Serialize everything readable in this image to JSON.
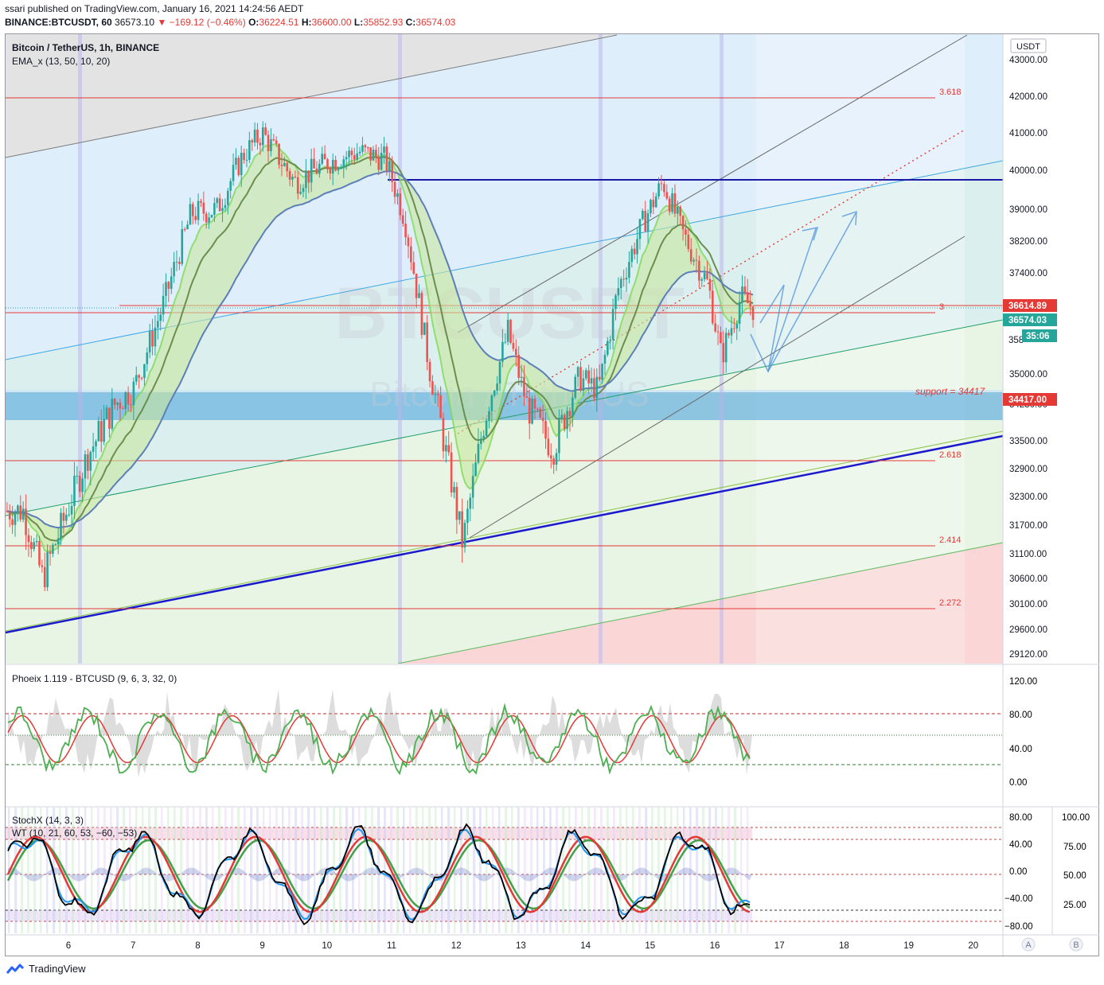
{
  "header": {
    "published": "ssari published on TradingView.com, January 16, 2021 14:24:56 AEDT",
    "symbol_line": {
      "symbol": "BINANCE:BTCUSDT, 60",
      "last": "36573.10",
      "change": "▼ −169.12 (−0.46%)",
      "o_label": "O:",
      "o": "36224.51",
      "h_label": "H:",
      "h": "36600.00",
      "l_label": "L:",
      "l": "35852.93",
      "c_label": "C:",
      "c": "36574.03"
    }
  },
  "main_pane": {
    "title": "Bitcoin / TetherUS, 1h, BINANCE",
    "indicator": "EMA_x (13, 50, 10, 20)",
    "currency": "USDT",
    "watermark": "BTCUSDT",
    "watermark_sub": "Bitcoin / TetherUS",
    "support_label": "support = 34417",
    "fib_labels": [
      "3.618",
      "3",
      "2.618",
      "2.414",
      "2.272"
    ]
  },
  "price_axis": [
    "43000.00",
    "42000.00",
    "41000.00",
    "40000.00",
    "39000.00",
    "38200.00",
    "37400.00",
    "35000.00",
    "34230.00",
    "33500.00",
    "32900.00",
    "32300.00",
    "31700.00",
    "31100.00",
    "30600.00",
    "30100.00",
    "29600.00",
    "29120.00"
  ],
  "price_tags": [
    {
      "label": "36614.89",
      "color": "#e53935"
    },
    {
      "label": "36574.03",
      "color": "#26a69a"
    },
    {
      "label": "35:06",
      "color": "#26a69a"
    },
    {
      "label": "34417.00",
      "color": "#e53935"
    }
  ],
  "partial_axis_label": "358",
  "phoenix_pane": {
    "title": "Phoeix 1.119 - BTCUSD (9, 6, 3, 32, 0)",
    "axis": [
      "120.00",
      "80.00",
      "40.00",
      "0.00"
    ]
  },
  "stoch_pane": {
    "title1": "StochX (14, 3, 3)",
    "title2": "WT (10, 21, 60, 53, −60, −53)",
    "axis_left": [
      "80.00",
      "40.00",
      "0.00",
      "−40.00",
      "−80.00"
    ],
    "axis_right": [
      "100.00",
      "75.00",
      "50.00",
      "25.00"
    ]
  },
  "time_axis": [
    "6",
    "7",
    "8",
    "9",
    "10",
    "11",
    "12",
    "13",
    "14",
    "15",
    "16",
    "17",
    "18",
    "19",
    "20"
  ],
  "scale_buttons": [
    "A",
    "B"
  ],
  "footer": {
    "brand": "TradingView"
  },
  "colors": {
    "up": "#26a69a",
    "down": "#ef5350",
    "fib": "#e53935",
    "trend_blue": "#1a237e",
    "resistance": "#1a1aa6"
  },
  "chart_data": [
    {
      "type": "candlestick",
      "title": "Bitcoin / TetherUS, 1h, BINANCE",
      "x": [
        "6",
        "7",
        "8",
        "9",
        "10",
        "11",
        "12",
        "13",
        "14",
        "15",
        "16",
        "17",
        "18",
        "19",
        "20"
      ],
      "ylim": [
        29000,
        43300
      ],
      "close_series": [
        {
          "day": 5.3,
          "price": 32000
        },
        {
          "day": 5.6,
          "price": 30600
        },
        {
          "day": 5.9,
          "price": 31700
        },
        {
          "day": 6.3,
          "price": 33200
        },
        {
          "day": 6.7,
          "price": 34200
        },
        {
          "day": 7.0,
          "price": 34600
        },
        {
          "day": 7.5,
          "price": 36800
        },
        {
          "day": 7.9,
          "price": 38900
        },
        {
          "day": 8.3,
          "price": 39000
        },
        {
          "day": 8.7,
          "price": 40400
        },
        {
          "day": 9.0,
          "price": 41000
        },
        {
          "day": 9.5,
          "price": 39700
        },
        {
          "day": 10.0,
          "price": 40200
        },
        {
          "day": 10.5,
          "price": 40500
        },
        {
          "day": 10.9,
          "price": 40300
        },
        {
          "day": 11.2,
          "price": 38800
        },
        {
          "day": 11.6,
          "price": 35000
        },
        {
          "day": 11.9,
          "price": 32800
        },
        {
          "day": 12.1,
          "price": 31300
        },
        {
          "day": 12.4,
          "price": 33700
        },
        {
          "day": 12.8,
          "price": 36000
        },
        {
          "day": 13.1,
          "price": 34200
        },
        {
          "day": 13.5,
          "price": 33300
        },
        {
          "day": 13.9,
          "price": 34900
        },
        {
          "day": 14.2,
          "price": 34600
        },
        {
          "day": 14.5,
          "price": 37000
        },
        {
          "day": 14.9,
          "price": 38700
        },
        {
          "day": 15.2,
          "price": 39700
        },
        {
          "day": 15.5,
          "price": 38400
        },
        {
          "day": 15.9,
          "price": 37100
        },
        {
          "day": 16.1,
          "price": 35400
        },
        {
          "day": 16.4,
          "price": 36800
        },
        {
          "day": 16.6,
          "price": 36574
        }
      ],
      "levels": [
        {
          "label": "3.618",
          "price": 42000
        },
        {
          "label": "3",
          "price": 36614.89
        },
        {
          "label": "2.618",
          "price": 33100
        },
        {
          "label": "2.414",
          "price": 31250
        },
        {
          "label": "2.272",
          "price": 30100
        },
        {
          "label": "support",
          "price": 34417
        },
        {
          "label": "resistance",
          "price": 39800
        }
      ]
    },
    {
      "type": "line",
      "title": "Phoeix 1.119 - BTCUSD (9, 6, 3, 32, 0)",
      "ylim": [
        0,
        120
      ],
      "levels": [
        80,
        55,
        20
      ]
    },
    {
      "type": "line",
      "title": "StochX (14, 3, 3)",
      "ylim": [
        -80,
        80
      ],
      "levels": [
        60,
        53,
        -53,
        -60
      ]
    }
  ]
}
